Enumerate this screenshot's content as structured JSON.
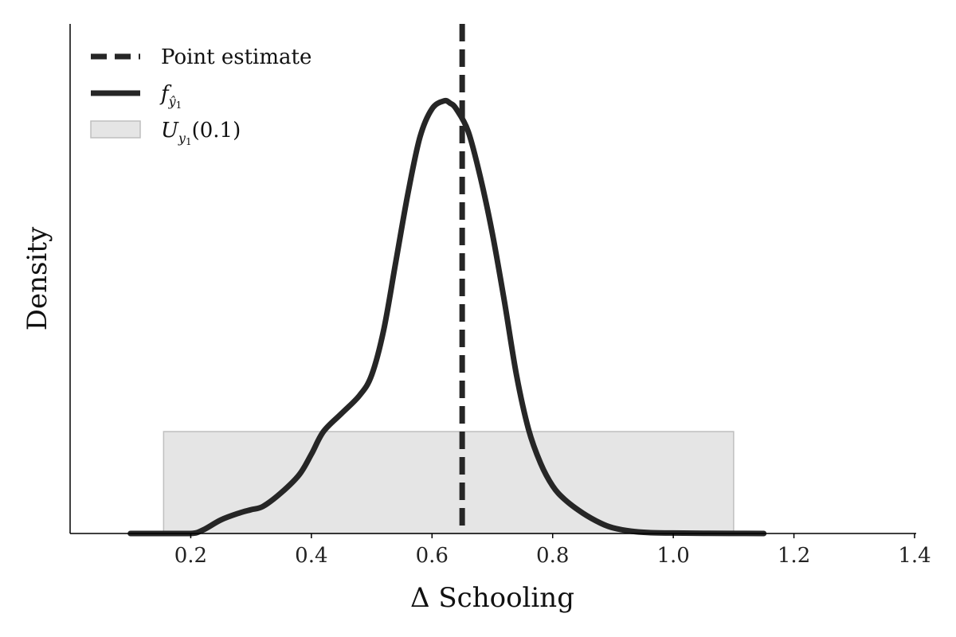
{
  "chart_data": {
    "type": "line",
    "xlabel": "Δ Schooling",
    "ylabel": "Density",
    "xlim": [
      0.0,
      1.4
    ],
    "ylim": [
      0.0,
      4.5
    ],
    "x_ticks": [
      "0.2",
      "0.4",
      "0.6",
      "0.8",
      "1.0",
      "1.2",
      "1.4"
    ],
    "y_ticks_shown": false,
    "grid": false,
    "legend_position": "top-left",
    "colors": {
      "line": "#262626",
      "interval_fill": "#e5e5e5",
      "interval_edge": "#bfbfbf"
    },
    "point_estimate": 0.65,
    "interval": {
      "lower": 0.155,
      "upper": 1.1,
      "height": 0.9
    },
    "density_series": {
      "x": [
        0.1,
        0.15,
        0.2,
        0.22,
        0.25,
        0.28,
        0.3,
        0.32,
        0.35,
        0.38,
        0.4,
        0.42,
        0.45,
        0.48,
        0.5,
        0.52,
        0.54,
        0.56,
        0.58,
        0.6,
        0.62,
        0.63,
        0.64,
        0.66,
        0.68,
        0.7,
        0.72,
        0.74,
        0.76,
        0.78,
        0.8,
        0.82,
        0.85,
        0.88,
        0.9,
        0.93,
        0.96,
        1.0,
        1.05,
        1.1,
        1.15
      ],
      "y": [
        0.0,
        0.0,
        0.0,
        0.03,
        0.12,
        0.18,
        0.21,
        0.24,
        0.36,
        0.52,
        0.7,
        0.9,
        1.06,
        1.22,
        1.4,
        1.8,
        2.4,
        3.0,
        3.5,
        3.75,
        3.82,
        3.8,
        3.75,
        3.55,
        3.15,
        2.65,
        2.05,
        1.4,
        0.92,
        0.62,
        0.42,
        0.3,
        0.18,
        0.09,
        0.05,
        0.02,
        0.008,
        0.004,
        0.002,
        0.001,
        0.0
      ]
    },
    "legend": {
      "point_estimate": "Point estimate",
      "density": {
        "main": "f",
        "sub": "ŷ",
        "subsub": "1"
      },
      "interval": {
        "main": "U",
        "sub": "y",
        "subsub": "1",
        "tail": "(0.1)"
      }
    }
  }
}
